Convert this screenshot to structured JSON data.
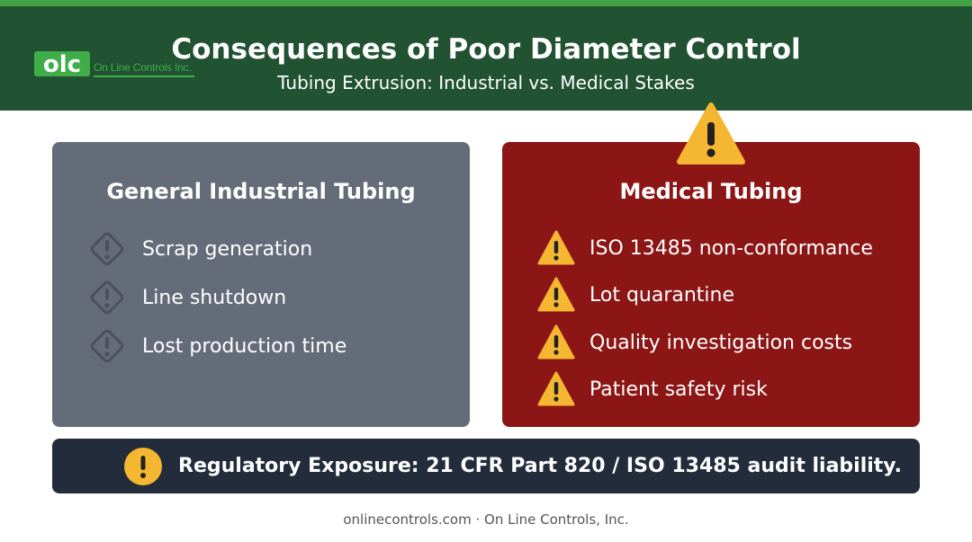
{
  "header": {
    "title": "Consequences of Poor Diameter Control",
    "subtitle": "Tubing Extrusion: Industrial vs. Medical Stakes",
    "logo_text": "On Line Controls Inc.",
    "logo_mark": "olc"
  },
  "industrial": {
    "title": "General Industrial Tubing",
    "icon": "warning-diamond-icon",
    "items": [
      "Scrap generation",
      "Line shutdown",
      "Lost production time"
    ]
  },
  "medical": {
    "title": "Medical Tubing",
    "icon": "warning-triangle-icon",
    "items": [
      "ISO 13485 non-conformance",
      "Lot quarantine",
      "Quality investigation costs",
      "Patient safety risk"
    ]
  },
  "banner": {
    "icon": "exclamation-circle-icon",
    "text": "Regulatory Exposure: 21 CFR Part 820 / ISO 13485 audit liability."
  },
  "footer": {
    "text": "onlinecontrols.com · On Line Controls, Inc."
  },
  "colors": {
    "header_bg": "#215232",
    "accent_green": "#43a047",
    "industrial_panel": "#656c79",
    "medical_panel": "#8c1515",
    "warning_yellow": "#f5b731",
    "banner_bg": "#222c3a"
  }
}
